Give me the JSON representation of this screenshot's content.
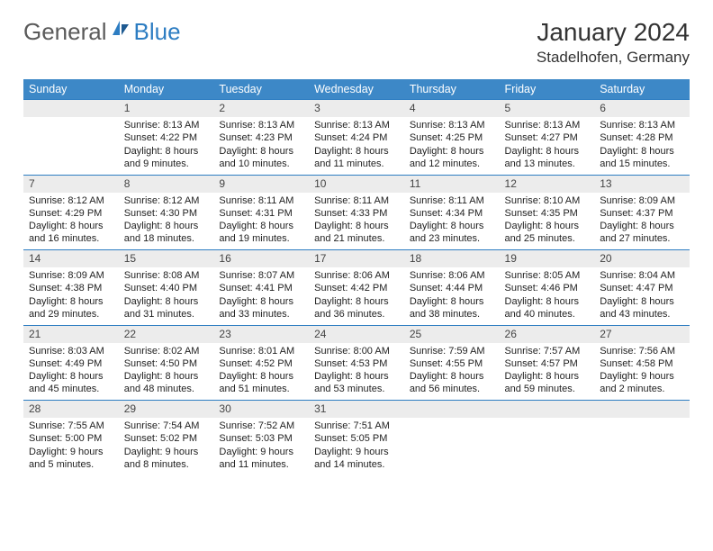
{
  "logo": {
    "part1": "General",
    "part2": "Blue"
  },
  "title": "January 2024",
  "location": "Stadelhofen, Germany",
  "colors": {
    "header_bg": "#3d88c7",
    "accent": "#2d7dc2",
    "daynum_bg": "#ececec",
    "text": "#222222",
    "logo_gray": "#5a5a5a"
  },
  "weekdays": [
    "Sunday",
    "Monday",
    "Tuesday",
    "Wednesday",
    "Thursday",
    "Friday",
    "Saturday"
  ],
  "weeks": [
    [
      {
        "n": "",
        "sr": "",
        "ss": "",
        "dl": ""
      },
      {
        "n": "1",
        "sr": "Sunrise: 8:13 AM",
        "ss": "Sunset: 4:22 PM",
        "dl": "Daylight: 8 hours and 9 minutes."
      },
      {
        "n": "2",
        "sr": "Sunrise: 8:13 AM",
        "ss": "Sunset: 4:23 PM",
        "dl": "Daylight: 8 hours and 10 minutes."
      },
      {
        "n": "3",
        "sr": "Sunrise: 8:13 AM",
        "ss": "Sunset: 4:24 PM",
        "dl": "Daylight: 8 hours and 11 minutes."
      },
      {
        "n": "4",
        "sr": "Sunrise: 8:13 AM",
        "ss": "Sunset: 4:25 PM",
        "dl": "Daylight: 8 hours and 12 minutes."
      },
      {
        "n": "5",
        "sr": "Sunrise: 8:13 AM",
        "ss": "Sunset: 4:27 PM",
        "dl": "Daylight: 8 hours and 13 minutes."
      },
      {
        "n": "6",
        "sr": "Sunrise: 8:13 AM",
        "ss": "Sunset: 4:28 PM",
        "dl": "Daylight: 8 hours and 15 minutes."
      }
    ],
    [
      {
        "n": "7",
        "sr": "Sunrise: 8:12 AM",
        "ss": "Sunset: 4:29 PM",
        "dl": "Daylight: 8 hours and 16 minutes."
      },
      {
        "n": "8",
        "sr": "Sunrise: 8:12 AM",
        "ss": "Sunset: 4:30 PM",
        "dl": "Daylight: 8 hours and 18 minutes."
      },
      {
        "n": "9",
        "sr": "Sunrise: 8:11 AM",
        "ss": "Sunset: 4:31 PM",
        "dl": "Daylight: 8 hours and 19 minutes."
      },
      {
        "n": "10",
        "sr": "Sunrise: 8:11 AM",
        "ss": "Sunset: 4:33 PM",
        "dl": "Daylight: 8 hours and 21 minutes."
      },
      {
        "n": "11",
        "sr": "Sunrise: 8:11 AM",
        "ss": "Sunset: 4:34 PM",
        "dl": "Daylight: 8 hours and 23 minutes."
      },
      {
        "n": "12",
        "sr": "Sunrise: 8:10 AM",
        "ss": "Sunset: 4:35 PM",
        "dl": "Daylight: 8 hours and 25 minutes."
      },
      {
        "n": "13",
        "sr": "Sunrise: 8:09 AM",
        "ss": "Sunset: 4:37 PM",
        "dl": "Daylight: 8 hours and 27 minutes."
      }
    ],
    [
      {
        "n": "14",
        "sr": "Sunrise: 8:09 AM",
        "ss": "Sunset: 4:38 PM",
        "dl": "Daylight: 8 hours and 29 minutes."
      },
      {
        "n": "15",
        "sr": "Sunrise: 8:08 AM",
        "ss": "Sunset: 4:40 PM",
        "dl": "Daylight: 8 hours and 31 minutes."
      },
      {
        "n": "16",
        "sr": "Sunrise: 8:07 AM",
        "ss": "Sunset: 4:41 PM",
        "dl": "Daylight: 8 hours and 33 minutes."
      },
      {
        "n": "17",
        "sr": "Sunrise: 8:06 AM",
        "ss": "Sunset: 4:42 PM",
        "dl": "Daylight: 8 hours and 36 minutes."
      },
      {
        "n": "18",
        "sr": "Sunrise: 8:06 AM",
        "ss": "Sunset: 4:44 PM",
        "dl": "Daylight: 8 hours and 38 minutes."
      },
      {
        "n": "19",
        "sr": "Sunrise: 8:05 AM",
        "ss": "Sunset: 4:46 PM",
        "dl": "Daylight: 8 hours and 40 minutes."
      },
      {
        "n": "20",
        "sr": "Sunrise: 8:04 AM",
        "ss": "Sunset: 4:47 PM",
        "dl": "Daylight: 8 hours and 43 minutes."
      }
    ],
    [
      {
        "n": "21",
        "sr": "Sunrise: 8:03 AM",
        "ss": "Sunset: 4:49 PM",
        "dl": "Daylight: 8 hours and 45 minutes."
      },
      {
        "n": "22",
        "sr": "Sunrise: 8:02 AM",
        "ss": "Sunset: 4:50 PM",
        "dl": "Daylight: 8 hours and 48 minutes."
      },
      {
        "n": "23",
        "sr": "Sunrise: 8:01 AM",
        "ss": "Sunset: 4:52 PM",
        "dl": "Daylight: 8 hours and 51 minutes."
      },
      {
        "n": "24",
        "sr": "Sunrise: 8:00 AM",
        "ss": "Sunset: 4:53 PM",
        "dl": "Daylight: 8 hours and 53 minutes."
      },
      {
        "n": "25",
        "sr": "Sunrise: 7:59 AM",
        "ss": "Sunset: 4:55 PM",
        "dl": "Daylight: 8 hours and 56 minutes."
      },
      {
        "n": "26",
        "sr": "Sunrise: 7:57 AM",
        "ss": "Sunset: 4:57 PM",
        "dl": "Daylight: 8 hours and 59 minutes."
      },
      {
        "n": "27",
        "sr": "Sunrise: 7:56 AM",
        "ss": "Sunset: 4:58 PM",
        "dl": "Daylight: 9 hours and 2 minutes."
      }
    ],
    [
      {
        "n": "28",
        "sr": "Sunrise: 7:55 AM",
        "ss": "Sunset: 5:00 PM",
        "dl": "Daylight: 9 hours and 5 minutes."
      },
      {
        "n": "29",
        "sr": "Sunrise: 7:54 AM",
        "ss": "Sunset: 5:02 PM",
        "dl": "Daylight: 9 hours and 8 minutes."
      },
      {
        "n": "30",
        "sr": "Sunrise: 7:52 AM",
        "ss": "Sunset: 5:03 PM",
        "dl": "Daylight: 9 hours and 11 minutes."
      },
      {
        "n": "31",
        "sr": "Sunrise: 7:51 AM",
        "ss": "Sunset: 5:05 PM",
        "dl": "Daylight: 9 hours and 14 minutes."
      },
      {
        "n": "",
        "sr": "",
        "ss": "",
        "dl": ""
      },
      {
        "n": "",
        "sr": "",
        "ss": "",
        "dl": ""
      },
      {
        "n": "",
        "sr": "",
        "ss": "",
        "dl": ""
      }
    ]
  ]
}
